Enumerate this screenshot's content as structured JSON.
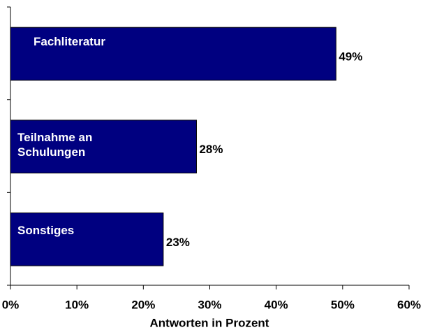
{
  "chart_data": {
    "type": "hbar",
    "categories": [
      "Fachliteratur",
      "Teilnahme an Schulungen",
      "Sonstiges"
    ],
    "values": [
      49,
      28,
      23
    ],
    "value_labels": [
      "49%",
      "28%",
      "23%"
    ],
    "color": "#000080",
    "xlabel": "Antworten in Prozent",
    "xlim": [
      0,
      60
    ],
    "xticks": [
      {
        "value": 0,
        "label": "0%"
      },
      {
        "value": 10,
        "label": "10%"
      },
      {
        "value": 20,
        "label": "20%"
      },
      {
        "value": 30,
        "label": "30%"
      },
      {
        "value": 40,
        "label": "40%"
      },
      {
        "value": 50,
        "label": "50%"
      },
      {
        "value": 60,
        "label": "60%"
      }
    ]
  }
}
